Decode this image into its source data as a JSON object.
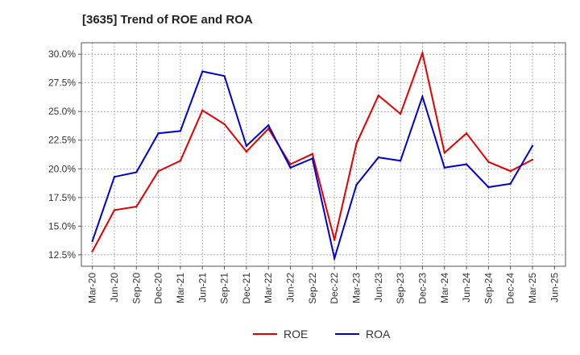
{
  "chart_data": {
    "type": "line",
    "title": "[3635]  Trend of ROE and ROA",
    "xlabel": "",
    "ylabel": "",
    "categories": [
      "Mar-20",
      "Jun-20",
      "Sep-20",
      "Dec-20",
      "Mar-21",
      "Jun-21",
      "Sep-21",
      "Dec-21",
      "Mar-22",
      "Jun-22",
      "Sep-22",
      "Dec-22",
      "Mar-23",
      "Jun-23",
      "Sep-23",
      "Dec-23",
      "Mar-24",
      "Jun-24",
      "Sep-24",
      "Dec-24",
      "Mar-25",
      "Jun-25"
    ],
    "y_ticks": [
      "12.5%",
      "15.0%",
      "17.5%",
      "20.0%",
      "22.5%",
      "25.0%",
      "27.5%",
      "30.0%"
    ],
    "ylim": [
      11.5,
      31.0
    ],
    "grid": true,
    "legend_position": "bottom",
    "series": [
      {
        "name": "ROE",
        "color": "#e00000",
        "values": [
          12.8,
          16.4,
          16.7,
          19.8,
          20.7,
          25.1,
          23.9,
          21.5,
          23.5,
          20.4,
          21.3,
          13.8,
          22.2,
          26.4,
          24.8,
          30.1,
          21.4,
          23.1,
          20.6,
          19.8,
          20.8,
          null
        ]
      },
      {
        "name": "ROA",
        "color": "#0000cc",
        "values": [
          13.7,
          19.3,
          19.7,
          23.1,
          23.3,
          28.5,
          28.1,
          22.0,
          23.8,
          20.1,
          20.9,
          12.2,
          18.6,
          21.0,
          20.7,
          26.3,
          20.1,
          20.4,
          18.4,
          18.7,
          22.0,
          null
        ]
      }
    ]
  }
}
